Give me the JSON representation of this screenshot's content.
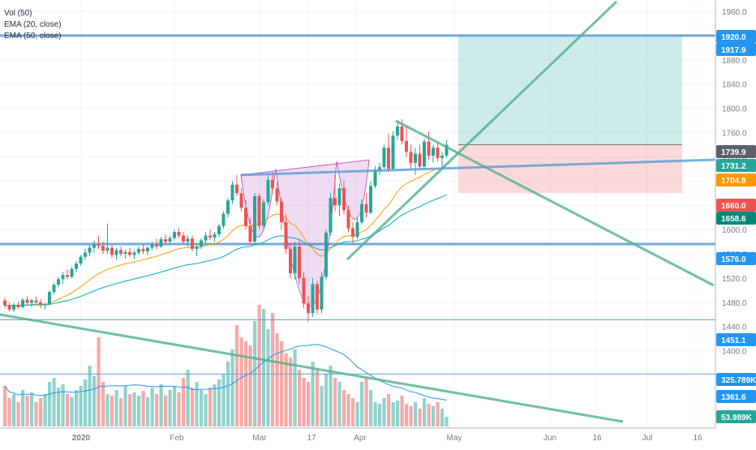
{
  "legend": {
    "vol": "Vol (50)",
    "ema20": "EMA (20, close)",
    "ema50": "EMA (50, close)"
  },
  "chart_data": {
    "type": "candlestick",
    "ylim": [
      1400,
      1970
    ],
    "y_ticks": [
      1400,
      1440,
      1480,
      1520,
      1560,
      1600,
      1640,
      1680,
      1720,
      1760,
      1800,
      1840,
      1880,
      1960
    ],
    "x_ticks": [
      "2020",
      "Feb",
      "Mar",
      "17",
      "Apr",
      "May",
      "Jun",
      "16",
      "Jul",
      "16"
    ],
    "price_badges": [
      {
        "value": "1920.0",
        "color": "#2196f3"
      },
      {
        "value": "1917.9",
        "color": "#2196f3"
      },
      {
        "value": "1739.9",
        "color": "#5d606b"
      },
      {
        "value": "1731.2",
        "color": "#26a69a"
      },
      {
        "value": "1704.9",
        "color": "#ff9800"
      },
      {
        "value": "1660.0",
        "color": "#ef5350"
      },
      {
        "value": "1658.6",
        "color": "#00897b"
      },
      {
        "value": "1576.0",
        "color": "#2196f3"
      },
      {
        "value": "1451.1",
        "color": "#2196f3"
      },
      {
        "value": "325.789K",
        "color": "#2196f3"
      },
      {
        "value": "1361.6",
        "color": "#2196f3"
      },
      {
        "value": "53.989K",
        "color": "#26a69a"
      }
    ],
    "horizontal_levels": [
      1920,
      1576,
      1451.1,
      1361.6
    ],
    "position": {
      "entry": 1739.9,
      "target": 1920,
      "stop": 1660
    },
    "candles": [
      [
        1483,
        1488,
        1470,
        1475
      ],
      [
        1475,
        1480,
        1465,
        1468
      ],
      [
        1468,
        1479,
        1464,
        1476
      ],
      [
        1476,
        1481,
        1470,
        1472
      ],
      [
        1472,
        1487,
        1470,
        1484
      ],
      [
        1484,
        1490,
        1475,
        1479
      ],
      [
        1479,
        1486,
        1472,
        1483
      ],
      [
        1483,
        1489,
        1476,
        1480
      ],
      [
        1480,
        1486,
        1470,
        1475
      ],
      [
        1475,
        1479,
        1468,
        1477
      ],
      [
        1477,
        1500,
        1475,
        1497
      ],
      [
        1497,
        1512,
        1493,
        1509
      ],
      [
        1509,
        1522,
        1505,
        1518
      ],
      [
        1518,
        1530,
        1510,
        1525
      ],
      [
        1525,
        1534,
        1518,
        1522
      ],
      [
        1522,
        1538,
        1519,
        1535
      ],
      [
        1535,
        1548,
        1530,
        1544
      ],
      [
        1544,
        1558,
        1540,
        1555
      ],
      [
        1555,
        1568,
        1550,
        1562
      ],
      [
        1562,
        1575,
        1556,
        1570
      ],
      [
        1570,
        1582,
        1562,
        1575
      ],
      [
        1575,
        1590,
        1568,
        1573
      ],
      [
        1573,
        1580,
        1560,
        1565
      ],
      [
        1565,
        1610,
        1560,
        1570
      ],
      [
        1570,
        1575,
        1553,
        1558
      ],
      [
        1558,
        1570,
        1550,
        1566
      ],
      [
        1566,
        1572,
        1556,
        1560
      ],
      [
        1560,
        1567,
        1552,
        1563
      ],
      [
        1563,
        1570,
        1555,
        1558
      ],
      [
        1558,
        1566,
        1551,
        1562
      ],
      [
        1562,
        1572,
        1558,
        1568
      ],
      [
        1568,
        1576,
        1560,
        1564
      ],
      [
        1564,
        1572,
        1558,
        1570
      ],
      [
        1570,
        1580,
        1566,
        1576
      ],
      [
        1576,
        1585,
        1568,
        1572
      ],
      [
        1572,
        1588,
        1570,
        1584
      ],
      [
        1584,
        1592,
        1575,
        1580
      ],
      [
        1580,
        1590,
        1574,
        1586
      ],
      [
        1586,
        1600,
        1582,
        1596
      ],
      [
        1596,
        1602,
        1586,
        1590
      ],
      [
        1590,
        1596,
        1576,
        1580
      ],
      [
        1580,
        1590,
        1573,
        1585
      ],
      [
        1585,
        1590,
        1564,
        1568
      ],
      [
        1568,
        1576,
        1556,
        1572
      ],
      [
        1572,
        1586,
        1568,
        1582
      ],
      [
        1582,
        1596,
        1578,
        1590
      ],
      [
        1590,
        1600,
        1583,
        1587
      ],
      [
        1587,
        1596,
        1580,
        1592
      ],
      [
        1592,
        1610,
        1588,
        1606
      ],
      [
        1606,
        1630,
        1602,
        1626
      ],
      [
        1626,
        1652,
        1620,
        1648
      ],
      [
        1648,
        1680,
        1642,
        1674
      ],
      [
        1674,
        1690,
        1655,
        1660
      ],
      [
        1660,
        1668,
        1630,
        1636
      ],
      [
        1636,
        1648,
        1600,
        1606
      ],
      [
        1606,
        1620,
        1575,
        1580
      ],
      [
        1580,
        1660,
        1576,
        1655
      ],
      [
        1655,
        1660,
        1600,
        1606
      ],
      [
        1606,
        1650,
        1600,
        1645
      ],
      [
        1645,
        1690,
        1640,
        1682
      ],
      [
        1682,
        1695,
        1660,
        1668
      ],
      [
        1668,
        1678,
        1640,
        1646
      ],
      [
        1646,
        1652,
        1600,
        1612
      ],
      [
        1612,
        1625,
        1560,
        1568
      ],
      [
        1568,
        1578,
        1520,
        1528
      ],
      [
        1528,
        1580,
        1518,
        1572
      ],
      [
        1572,
        1585,
        1510,
        1520
      ],
      [
        1520,
        1530,
        1470,
        1478
      ],
      [
        1478,
        1490,
        1448,
        1462
      ],
      [
        1462,
        1520,
        1456,
        1510
      ],
      [
        1510,
        1515,
        1460,
        1468
      ],
      [
        1468,
        1530,
        1462,
        1522
      ],
      [
        1522,
        1600,
        1518,
        1595
      ],
      [
        1595,
        1660,
        1590,
        1652
      ],
      [
        1652,
        1690,
        1630,
        1640
      ],
      [
        1640,
        1676,
        1622,
        1668
      ],
      [
        1668,
        1680,
        1625,
        1632
      ],
      [
        1632,
        1640,
        1595,
        1602
      ],
      [
        1602,
        1612,
        1578,
        1588
      ],
      [
        1588,
        1620,
        1584,
        1612
      ],
      [
        1612,
        1650,
        1608,
        1642
      ],
      [
        1642,
        1660,
        1620,
        1628
      ],
      [
        1628,
        1680,
        1625,
        1672
      ],
      [
        1672,
        1705,
        1668,
        1698
      ],
      [
        1698,
        1710,
        1690,
        1703
      ],
      [
        1703,
        1740,
        1700,
        1735
      ],
      [
        1735,
        1758,
        1695,
        1700
      ],
      [
        1700,
        1762,
        1696,
        1755
      ],
      [
        1755,
        1780,
        1748,
        1770
      ],
      [
        1770,
        1782,
        1740,
        1746
      ],
      [
        1746,
        1772,
        1720,
        1728
      ],
      [
        1728,
        1740,
        1700,
        1710
      ],
      [
        1710,
        1735,
        1690,
        1725
      ],
      [
        1725,
        1740,
        1700,
        1704
      ],
      [
        1704,
        1750,
        1700,
        1745
      ],
      [
        1745,
        1762,
        1715,
        1722
      ],
      [
        1722,
        1740,
        1710,
        1735
      ],
      [
        1735,
        1745,
        1712,
        1718
      ],
      [
        1718,
        1728,
        1700,
        1722
      ],
      [
        1722,
        1748,
        1718,
        1740
      ]
    ],
    "volume_heights": [
      50,
      35,
      40,
      30,
      45,
      38,
      42,
      30,
      35,
      40,
      55,
      60,
      48,
      52,
      40,
      36,
      45,
      50,
      58,
      75,
      62,
      110,
      55,
      40,
      38,
      45,
      35,
      50,
      40,
      42,
      38,
      44,
      36,
      48,
      40,
      52,
      38,
      45,
      50,
      42,
      60,
      70,
      48,
      55,
      45,
      40,
      48,
      52,
      58,
      65,
      80,
      95,
      125,
      110,
      105,
      100,
      130,
      150,
      145,
      120,
      140,
      115,
      105,
      90,
      85,
      95,
      70,
      60,
      55,
      80,
      70,
      50,
      65,
      75,
      60,
      55,
      45,
      40,
      35,
      30,
      55,
      60,
      45,
      30,
      28,
      35,
      40,
      30,
      32,
      38,
      28,
      25,
      30,
      22,
      35,
      28,
      25,
      30,
      22,
      12
    ]
  }
}
